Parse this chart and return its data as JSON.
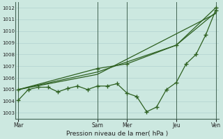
{
  "xlabel": "Pression niveau de la mer( hPa )",
  "bg_color": "#cce8e0",
  "grid_color": "#aacccc",
  "line_color": "#2d6020",
  "ylim": [
    1002.5,
    1012.5
  ],
  "yticks": [
    1003,
    1004,
    1005,
    1006,
    1007,
    1008,
    1009,
    1010,
    1011,
    1012
  ],
  "day_labels": [
    "Mar",
    "Sam",
    "Mer",
    "Jeu",
    "Ven"
  ],
  "day_positions": [
    0,
    8,
    11,
    16,
    20
  ],
  "xlim": [
    -0.3,
    20.3
  ],
  "series1_x": [
    0,
    1,
    2,
    3,
    4,
    5,
    6,
    7,
    8,
    9,
    10,
    11,
    12,
    13,
    14,
    15,
    16,
    17,
    18,
    19,
    20
  ],
  "series1_y": [
    1004.1,
    1005.0,
    1005.2,
    1005.2,
    1004.8,
    1005.1,
    1005.3,
    1005.0,
    1005.3,
    1005.3,
    1005.5,
    1004.7,
    1004.4,
    1003.1,
    1003.5,
    1005.0,
    1005.6,
    1007.2,
    1008.0,
    1009.7,
    1011.8
  ],
  "series2_x": [
    0,
    8,
    20
  ],
  "series2_y": [
    1005.0,
    1006.3,
    1011.5
  ],
  "series3_x": [
    0,
    8,
    16,
    20
  ],
  "series3_y": [
    1005.0,
    1006.5,
    1008.8,
    1011.6
  ],
  "series4_x": [
    0,
    8,
    11,
    16,
    20
  ],
  "series4_y": [
    1005.0,
    1006.8,
    1007.2,
    1008.8,
    1012.0
  ]
}
